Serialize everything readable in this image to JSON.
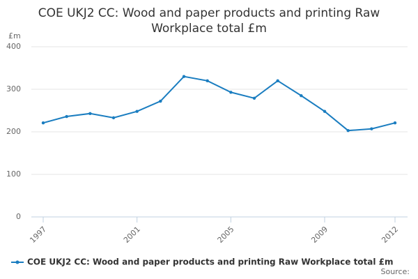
{
  "chart_data": {
    "type": "line",
    "title": "COE UKJ2 CC: Wood and paper products and printing Raw Workplace total £m",
    "y_unit": "£m",
    "source": "Source:",
    "x": [
      1997,
      1998,
      1999,
      2000,
      2001,
      2002,
      2003,
      2004,
      2005,
      2006,
      2007,
      2008,
      2009,
      2010,
      2011,
      2012
    ],
    "series": [
      {
        "name": "COE UKJ2 CC: Wood and paper products and printing Raw Workplace total £m",
        "color": "#1a7dc0",
        "values": [
          221,
          236,
          243,
          233,
          248,
          272,
          330,
          320,
          293,
          279,
          320,
          285,
          248,
          203,
          207,
          221
        ]
      }
    ],
    "xlim": [
      1997,
      2012
    ],
    "xticks": [
      1997,
      2001,
      2005,
      2009,
      2012
    ],
    "ylim": [
      0,
      400
    ],
    "yticks": [
      0,
      100,
      200,
      300,
      400
    ],
    "grid": true
  }
}
